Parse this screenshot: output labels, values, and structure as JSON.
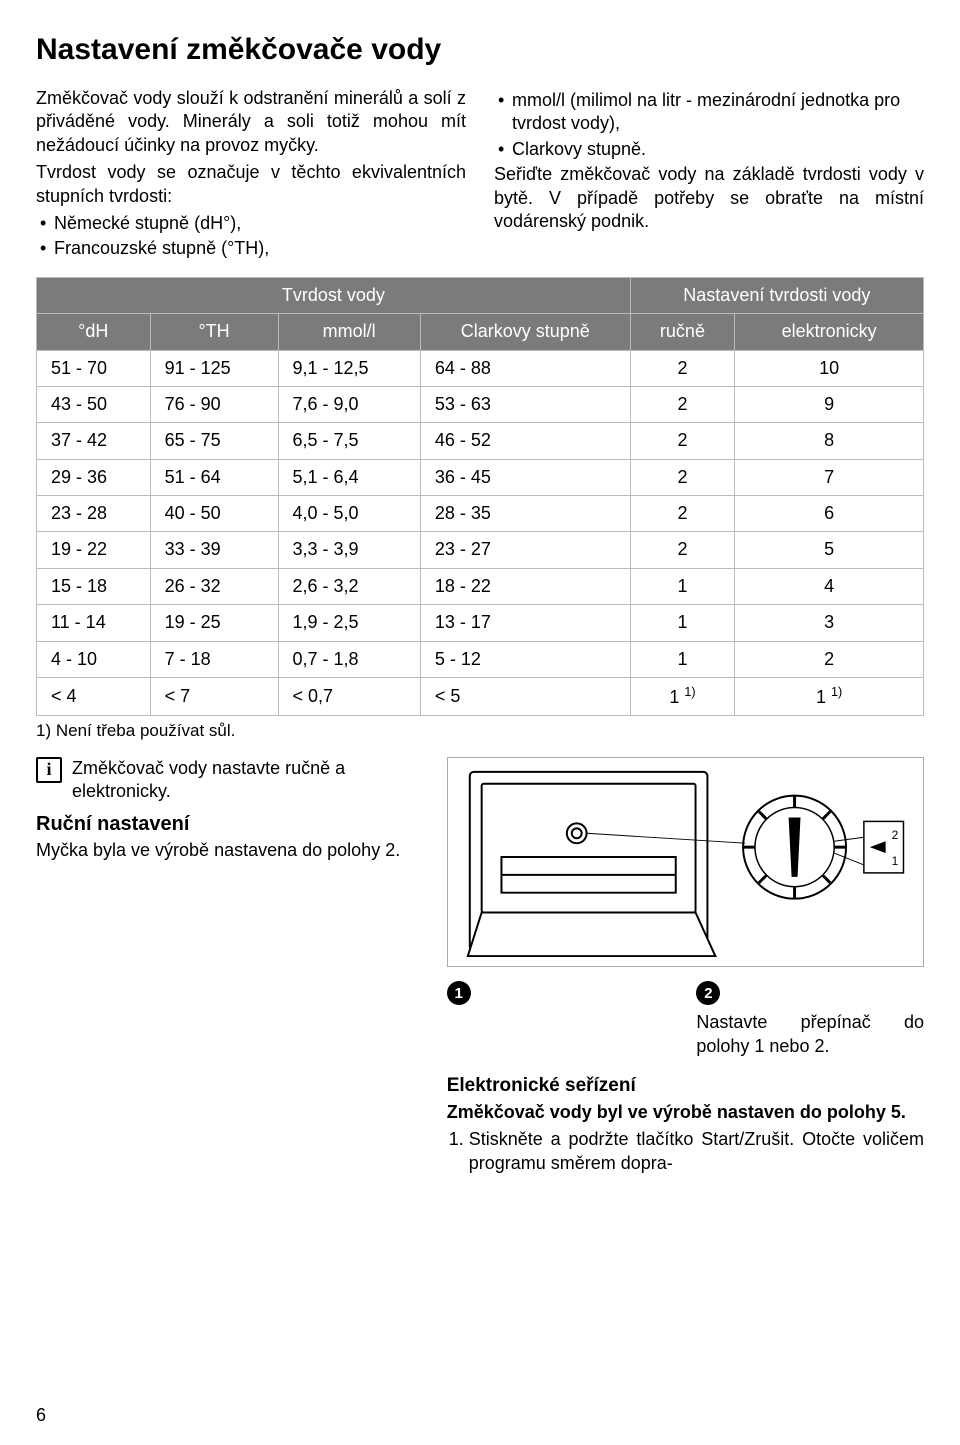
{
  "page_number": "6",
  "title": "Nastavení změkčovače vody",
  "intro_left": {
    "p1": "Změkčovač vody slouží k odstranění minerálů a solí z přiváděné vody. Minerály a soli totiž mohou mít nežádoucí účinky na provoz myčky.",
    "p2": "Tvrdost vody se označuje v těchto ekvivalentních stupních tvrdosti:",
    "bullets": [
      "Německé stupně (dH°),",
      "Francouzské stupně (°TH),"
    ]
  },
  "intro_right": {
    "bullets": [
      "mmol/l (milimol na litr - mezinárodní jednotka pro tvrdost vody),",
      "Clarkovy stupně."
    ],
    "p1": "Seřiďte změkčovač vody na základě tvrdosti vody v bytě. V případě potřeby se obraťte na místní vodárenský podnik."
  },
  "table": {
    "group1": "Tvrdost vody",
    "group2": "Nastavení tvrdosti vody",
    "headers": [
      "°dH",
      "°TH",
      "mmol/l",
      "Clarkovy stupně",
      "ručně",
      "elektronicky"
    ],
    "rows": [
      [
        "51 - 70",
        "91 - 125",
        "9,1 - 12,5",
        "64 - 88",
        "2",
        "10"
      ],
      [
        "43 - 50",
        "76 - 90",
        "7,6 - 9,0",
        "53 - 63",
        "2",
        "9"
      ],
      [
        "37 - 42",
        "65 - 75",
        "6,5 - 7,5",
        "46 - 52",
        "2",
        "8"
      ],
      [
        "29 - 36",
        "51 - 64",
        "5,1 - 6,4",
        "36 - 45",
        "2",
        "7"
      ],
      [
        "23 - 28",
        "40 - 50",
        "4,0 - 5,0",
        "28 - 35",
        "2",
        "6"
      ],
      [
        "19 - 22",
        "33 - 39",
        "3,3 - 3,9",
        "23 - 27",
        "2",
        "5"
      ],
      [
        "15 - 18",
        "26 - 32",
        "2,6 - 3,2",
        "18 - 22",
        "1",
        "4"
      ],
      [
        "11 - 14",
        "19 - 25",
        "1,9 - 2,5",
        "13 - 17",
        "1",
        "3"
      ],
      [
        "4 - 10",
        "7 - 18",
        "0,7 - 1,8",
        "5 - 12",
        "1",
        "2"
      ],
      [
        "< 4",
        "< 7",
        "< 0,7",
        "< 5",
        "1 1)",
        "1 1)"
      ]
    ],
    "footnote": "1) Není třeba používat sůl."
  },
  "info_note": "Změkčovač vody nastavte ručně a elektronicky.",
  "manual": {
    "heading": "Ruční nastavení",
    "text": "Myčka byla ve výrobě nastavena do polohy 2."
  },
  "steps": {
    "step1": "1",
    "step2": "2",
    "step2_text": "Nastavte přepínač do polohy 1 nebo 2."
  },
  "electronic": {
    "heading": "Elektronické seřízení",
    "bold_text": "Změkčovač vody byl ve výrobě nastaven do polohy 5.",
    "item1": "Stiskněte a podržte tlačítko Start/Zrušit. Otočte voličem programu směrem dopra-"
  }
}
